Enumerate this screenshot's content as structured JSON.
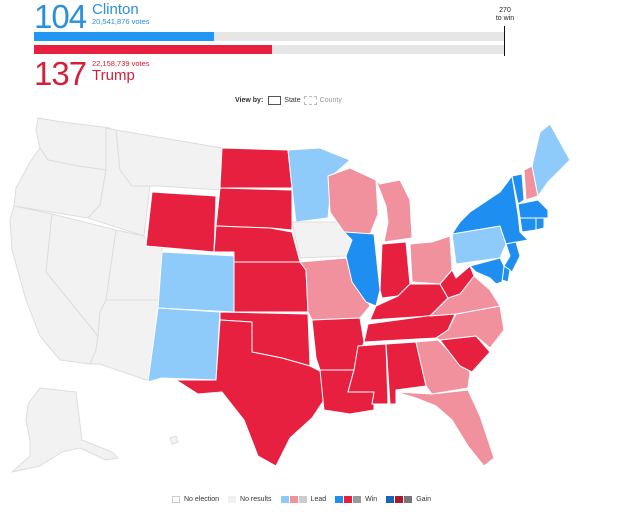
{
  "header": {
    "clinton": {
      "electoral_votes": "104",
      "name": "Clinton",
      "popular_votes": "20,541,876 votes",
      "color": "#2b8fe0",
      "bar_percent": 38.3
    },
    "trump": {
      "electoral_votes": "137",
      "name": "Trump",
      "popular_votes": "22,158,739 votes",
      "color": "#d51f3a",
      "bar_percent": 50.7
    },
    "threshold": {
      "value": "270",
      "label": "to win"
    }
  },
  "view_by": {
    "label": "View by:",
    "options": [
      {
        "label": "State",
        "selected": true
      },
      {
        "label": "County",
        "selected": false
      }
    ]
  },
  "map": {
    "colors": {
      "no_results": "#f2f2f2",
      "dem_lead": "#8ecbfa",
      "dem_win": "#1f8ef1",
      "rep_lead": "#f0919d",
      "rep_win": "#e8203f",
      "border": "#ffffff"
    },
    "states": {
      "WA": "no_results",
      "OR": "no_results",
      "CA": "no_results",
      "NV": "no_results",
      "ID": "no_results",
      "MT": "no_results",
      "UT": "no_results",
      "AZ": "no_results",
      "AK": "no_results",
      "HI": "no_results",
      "IA": "no_results",
      "WY": "rep_win",
      "ND": "rep_win",
      "SD": "rep_win",
      "NE": "rep_win",
      "KS": "rep_win",
      "OK": "rep_win",
      "TX": "rep_win",
      "AR": "rep_win",
      "LA": "rep_win",
      "MS": "rep_win",
      "AL": "rep_win",
      "TN": "rep_win",
      "KY": "rep_win",
      "IN": "rep_win",
      "WV": "rep_win",
      "SC": "rep_win",
      "MO": "rep_lead",
      "WI": "rep_lead",
      "MI": "rep_lead",
      "OH": "rep_lead",
      "GA": "rep_lead",
      "FL": "rep_lead",
      "NC": "rep_lead",
      "VA": "rep_lead",
      "NH": "rep_lead",
      "CO": "dem_lead",
      "NM": "dem_lead",
      "MN": "dem_lead",
      "PA": "dem_lead",
      "ME": "dem_lead",
      "IL": "dem_win",
      "NY": "dem_win",
      "VT": "dem_win",
      "MA": "dem_win",
      "CT": "dem_win",
      "RI": "dem_win",
      "NJ": "dem_win",
      "DE": "dem_win",
      "MD": "dem_win"
    }
  },
  "legend": {
    "no_election": "No election",
    "no_results": "No results",
    "lead": "Lead",
    "win": "Win",
    "gain": "Gain",
    "lead_colors": [
      "#8ecbfa",
      "#f0919d",
      "#cccccc"
    ],
    "win_colors": [
      "#1f8ef1",
      "#e8203f",
      "#999999"
    ],
    "gain_colors": [
      "#1565b8",
      "#a8192f",
      "#777777"
    ]
  }
}
